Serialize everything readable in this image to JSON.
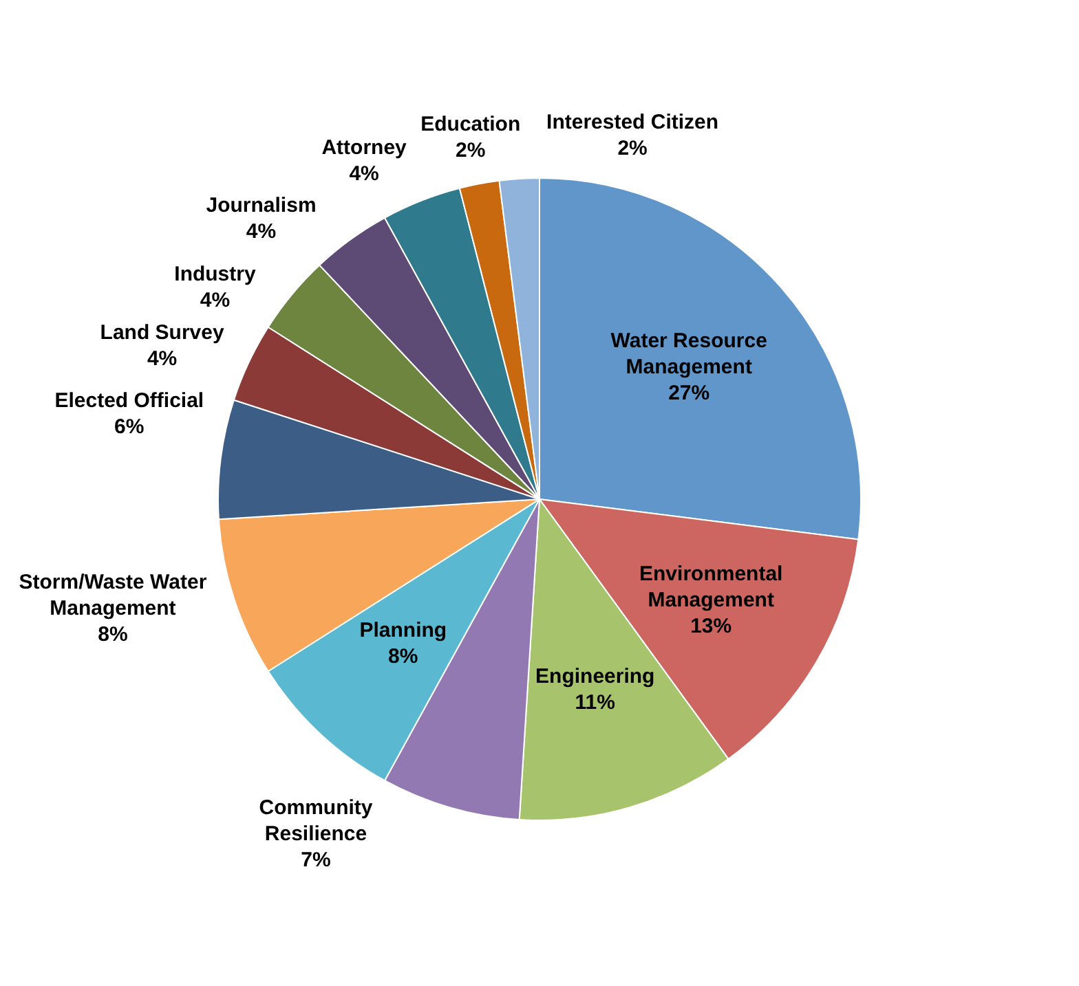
{
  "chart_data": {
    "type": "pie",
    "categories": [
      "Water Resource Management",
      "Environmental Management",
      "Engineering",
      "Community Resilience",
      "Planning",
      "Storm/Waste Water Management",
      "Elected Official",
      "Land Survey",
      "Industry",
      "Journalism",
      "Attorney",
      "Education",
      "Interested Citizen"
    ],
    "values": [
      27,
      13,
      11,
      7,
      8,
      8,
      6,
      4,
      4,
      4,
      4,
      2,
      2
    ],
    "colors": [
      "#6096c9",
      "#cd6660",
      "#a7c36c",
      "#9379b1",
      "#5ab8d0",
      "#f8a65a",
      "#3b5d86",
      "#8b3a38",
      "#6e8540",
      "#5d4b75",
      "#2f7a8c",
      "#c8690f",
      "#8fb3da"
    ],
    "value_labels": [
      "27%",
      "13%",
      "11%",
      "7%",
      "8%",
      "8%",
      "6%",
      "4%",
      "4%",
      "4%",
      "4%",
      "2%",
      "2%"
    ],
    "legend": false
  }
}
